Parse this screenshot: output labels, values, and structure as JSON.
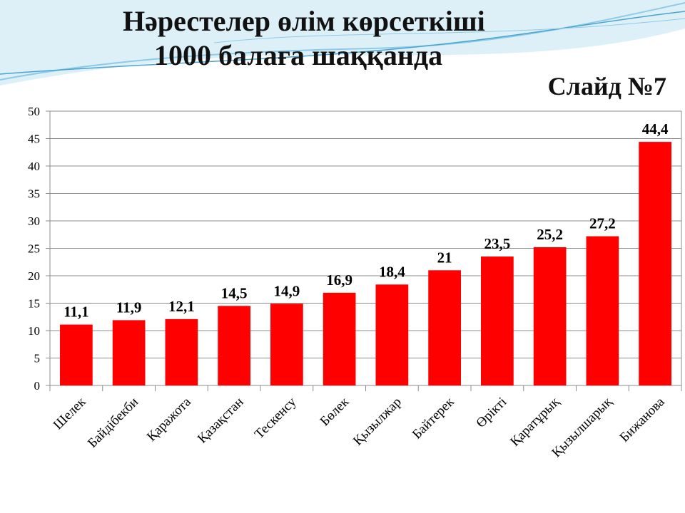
{
  "title_line1": "Нәрестелер өлім көрсеткіші",
  "title_line2": "1000  балаға  шаққанда",
  "slide_label": "Слайд №7",
  "colors": {
    "bar": "#ff0000",
    "grid": "#8c8c8c",
    "wave_light": "#cfe9f5",
    "wave_mid": "#8fcbe6",
    "wave_dark": "#4aa3d0"
  },
  "chart_data": {
    "type": "bar",
    "title": "Нәрестелер өлім көрсеткіші 1000 балаға шаққанда",
    "categories": [
      "Шелек",
      "Байдібекби",
      "Қаражота",
      "Қазақстан",
      "Тескенсу",
      "Бөлек",
      "Қызылжар",
      "Байтерек",
      "Өрікті",
      "Қаратұрық",
      "Қызылшарық",
      "Бижанова"
    ],
    "values": [
      11.1,
      11.9,
      12.1,
      14.5,
      14.9,
      16.9,
      18.4,
      21,
      23.5,
      25.2,
      27.2,
      44.4
    ],
    "value_labels": [
      "11,1",
      "11,9",
      "12,1",
      "14,5",
      "14,9",
      "16,9",
      "18,4",
      "21",
      "23,5",
      "25,2",
      "27,2",
      "44,4"
    ],
    "ylim": [
      0,
      50
    ],
    "yticks": [
      0,
      5,
      10,
      15,
      20,
      25,
      30,
      35,
      40,
      45,
      50
    ],
    "grid": true,
    "legend": "none"
  }
}
